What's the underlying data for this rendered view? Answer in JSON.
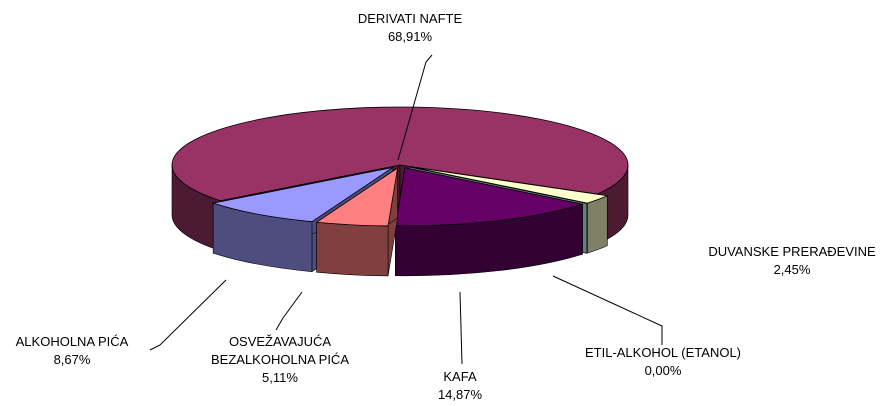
{
  "chart_data": {
    "type": "pie",
    "categories": [
      "DERIVATI NAFTE",
      "DUVANSKE PRERAĐEVINE",
      "ETIL-ALKOHOL (ETANOL)",
      "KAFA",
      "OSVEŽAVAJUĆA BEZALKOHOLNA PIĆA",
      "ALKOHOLNA PIĆA"
    ],
    "values": [
      68.91,
      2.45,
      0.0,
      14.87,
      5.11,
      8.67
    ],
    "value_labels": [
      "68,91%",
      "2,45%",
      "0,00%",
      "14,87%",
      "5,11%",
      "8,67%"
    ],
    "colors": [
      "#993366",
      "#FFFFCC",
      "#CCFFFF",
      "#660066",
      "#FF8080",
      "#9999FF"
    ]
  }
}
